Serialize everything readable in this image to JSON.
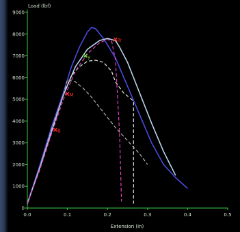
{
  "colors": {
    "background": "#000000",
    "axis": "#3ecf3e",
    "text": "#d8e8d8",
    "series_solid_blue": "#4a4adf",
    "series_solid_light": "#b8d4e8",
    "series_dashed_white": "#e6e6e6",
    "series_dashed_gray": "#b0b0b0",
    "series_dashed_pink": "#e040c0",
    "marker_red": "#ff2a2a",
    "marker_green": "#8bdc4a"
  },
  "chart_data": {
    "type": "line",
    "title": "",
    "xlabel": "Extension (in)",
    "ylabel": "Load (lbf)",
    "xlim": [
      0.0,
      0.5
    ],
    "ylim": [
      0,
      9000
    ],
    "x_ticks": [
      "0.0",
      "0.1",
      "0.2",
      "0.3",
      "0.4",
      "0.5"
    ],
    "y_ticks": [
      "0",
      "1000",
      "2000",
      "3000",
      "4000",
      "5000",
      "6000",
      "7000",
      "8000",
      "9000"
    ],
    "grid": false,
    "series": [
      {
        "style": "solid",
        "color": "#4a4adf",
        "x": [
          0.0,
          0.03,
          0.06,
          0.09,
          0.11,
          0.13,
          0.15,
          0.16,
          0.17,
          0.19,
          0.22,
          0.25,
          0.28,
          0.31,
          0.34,
          0.37,
          0.4
        ],
        "y": [
          200,
          1900,
          3700,
          5300,
          6500,
          7400,
          8100,
          8300,
          8250,
          7800,
          6900,
          5600,
          4300,
          3000,
          2000,
          1400,
          900
        ]
      },
      {
        "style": "solid",
        "color": "#b8d4e8",
        "x": [
          0.0,
          0.03,
          0.06,
          0.09,
          0.12,
          0.15,
          0.18,
          0.2,
          0.22,
          0.23,
          0.25,
          0.28,
          0.31,
          0.34,
          0.37
        ],
        "y": [
          200,
          1800,
          3500,
          5200,
          6500,
          7300,
          7700,
          7800,
          7700,
          7400,
          6700,
          5300,
          3900,
          2600,
          1500
        ]
      },
      {
        "style": "dashed",
        "color": "#e6e6e6",
        "x": [
          0.0,
          0.03,
          0.06,
          0.09,
          0.11,
          0.13,
          0.15,
          0.17,
          0.19,
          0.21,
          0.22,
          0.24,
          0.26,
          0.265,
          0.265
        ],
        "y": [
          200,
          1800,
          3600,
          5200,
          6100,
          6500,
          6750,
          6800,
          6700,
          6300,
          5800,
          5300,
          5000,
          4900,
          200
        ]
      },
      {
        "style": "dashed",
        "color": "#b0b0b0",
        "x": [
          0.0,
          0.03,
          0.06,
          0.09,
          0.1,
          0.12,
          0.14,
          0.16,
          0.19,
          0.22,
          0.25,
          0.28,
          0.3
        ],
        "y": [
          200,
          1800,
          3600,
          5200,
          5900,
          5800,
          5500,
          5100,
          4400,
          3700,
          3100,
          2500,
          2000
        ]
      },
      {
        "style": "dashed",
        "color": "#e040c0",
        "x": [
          0.0,
          0.03,
          0.06,
          0.09,
          0.12,
          0.15,
          0.18,
          0.2,
          0.21,
          0.22,
          0.23,
          0.235
        ],
        "y": [
          200,
          1700,
          3400,
          5000,
          6300,
          7100,
          7600,
          7750,
          7700,
          6800,
          3500,
          300
        ]
      }
    ],
    "markers": [
      {
        "label": "B",
        "x": 0.07,
        "y": 3600,
        "color": "#ff2a2a"
      },
      {
        "label": "M",
        "x": 0.1,
        "y": 5250,
        "color": "#ff2a2a"
      },
      {
        "label": "y",
        "x": 0.145,
        "y": 7000,
        "color": "#8bdc4a"
      },
      {
        "label": "Tr",
        "x": 0.22,
        "y": 7750,
        "color": "#ff2a2a"
      }
    ]
  }
}
